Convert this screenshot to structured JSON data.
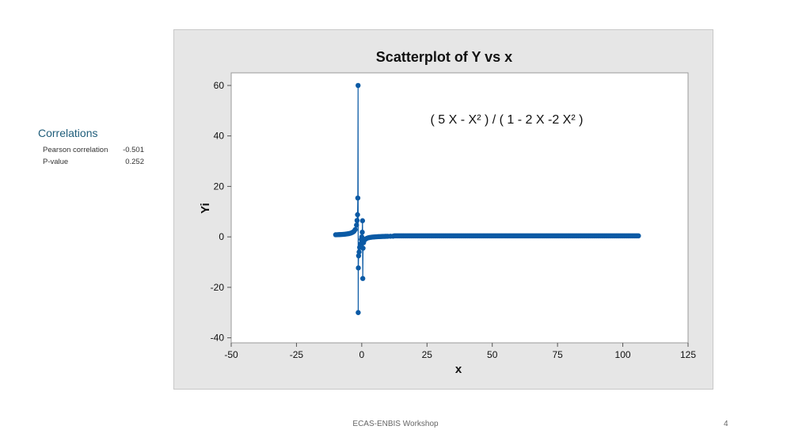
{
  "correlations": {
    "title": "Correlations",
    "rows": [
      {
        "label": "Pearson correlation",
        "value": "-0.501"
      },
      {
        "label": "P-value",
        "value": "0.252"
      }
    ]
  },
  "footer": {
    "text": "ECAS-ENBIS Workshop",
    "page": "4"
  },
  "chart_data": {
    "type": "scatter",
    "title": "Scatterplot of Y vs x",
    "xlabel": "x",
    "ylabel": "Yi",
    "annotation": "( 5 X - X² ) / ( 1 - 2 X -2 X² )",
    "xlim": [
      -50,
      125
    ],
    "ylim": [
      -42,
      65
    ],
    "xticks": [
      -50,
      -25,
      0,
      25,
      50,
      75,
      100,
      125
    ],
    "yticks": [
      -40,
      -20,
      0,
      20,
      40,
      60
    ],
    "grid": false,
    "connect_line": true,
    "color": "#0b5aa5",
    "points": [
      [
        -10,
        0.84
      ],
      [
        -9.5,
        0.86
      ],
      [
        -9,
        0.88
      ],
      [
        -8.5,
        0.91
      ],
      [
        -8,
        0.94
      ],
      [
        -7.5,
        0.97
      ],
      [
        -7,
        1.01
      ],
      [
        -6.5,
        1.06
      ],
      [
        -6,
        1.12
      ],
      [
        -5.5,
        1.19
      ],
      [
        -5,
        1.28
      ],
      [
        -4.5,
        1.41
      ],
      [
        -4,
        1.57
      ],
      [
        -3.5,
        1.81
      ],
      [
        -3,
        2.18
      ],
      [
        -2.5,
        2.88
      ],
      [
        -2,
        4.67
      ],
      [
        -1.8,
        6.5
      ],
      [
        -1.6,
        8.8
      ],
      [
        -1.5,
        15.4
      ],
      [
        -1.4,
        60
      ],
      [
        -1.35,
        -30
      ],
      [
        -1.3,
        -12.3
      ],
      [
        -1.2,
        -7.5
      ],
      [
        -1,
        -6
      ],
      [
        -0.8,
        -4.2
      ],
      [
        -0.5,
        -2.8
      ],
      [
        -0.2,
        -1.0
      ],
      [
        0,
        0
      ],
      [
        0.2,
        1.85
      ],
      [
        0.3,
        6.4
      ],
      [
        0.4,
        -16.5
      ],
      [
        0.5,
        -4.5
      ],
      [
        0.7,
        -2.3
      ],
      [
        1,
        -1.33
      ],
      [
        1.5,
        -0.85
      ],
      [
        2,
        -0.55
      ],
      [
        2.5,
        -0.38
      ],
      [
        3,
        -0.26
      ],
      [
        3.5,
        -0.17
      ],
      [
        4,
        -0.1
      ],
      [
        4.5,
        -0.05
      ],
      [
        5,
        0
      ],
      [
        5.5,
        0.04
      ],
      [
        6,
        0.07
      ],
      [
        6.5,
        0.1
      ],
      [
        7,
        0.12
      ],
      [
        7.5,
        0.14
      ],
      [
        8,
        0.17
      ],
      [
        8.5,
        0.18
      ],
      [
        9,
        0.2
      ],
      [
        9.5,
        0.21
      ],
      [
        10,
        0.23
      ],
      [
        11,
        0.25
      ],
      [
        12,
        0.27
      ]
    ],
    "tail": {
      "x_from": 12,
      "x_to": 106,
      "step": 0.5,
      "y": 0.4
    }
  }
}
